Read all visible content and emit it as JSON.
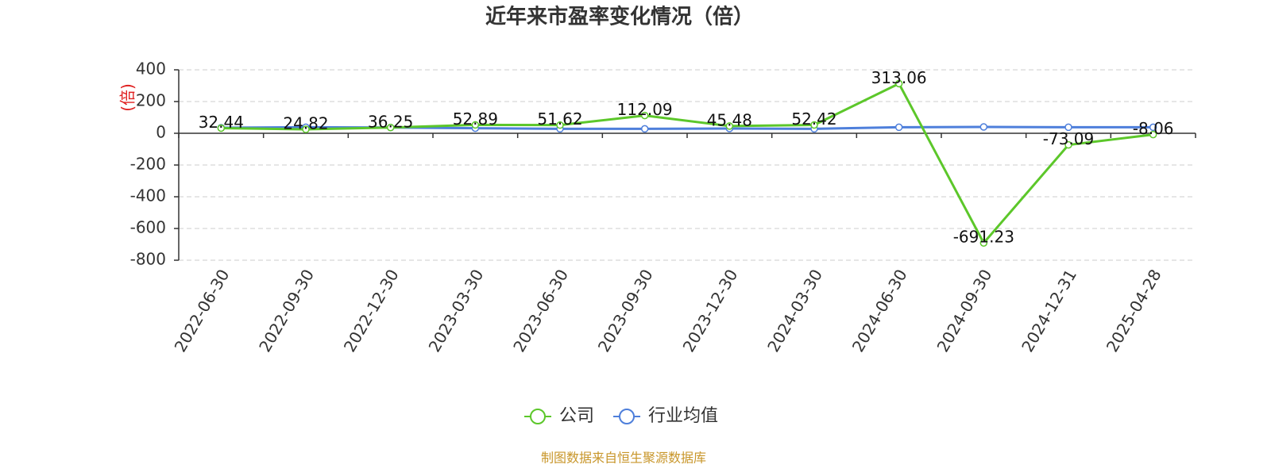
{
  "chart_data": {
    "type": "line",
    "title": "近年来市盈率变化情况（倍）",
    "y_label": "(倍)",
    "source": "制图数据来自恒生聚源数据库",
    "categories": [
      "2022-06-30",
      "2022-09-30",
      "2022-12-30",
      "2023-03-30",
      "2023-06-30",
      "2023-09-30",
      "2023-12-30",
      "2024-03-30",
      "2024-06-30",
      "2024-09-30",
      "2024-12-31",
      "2025-04-28"
    ],
    "series": [
      {
        "name": "公司",
        "color": "#5cc72a",
        "values": [
          32.44,
          24.82,
          36.25,
          52.89,
          51.62,
          112.09,
          45.48,
          52.42,
          313.06,
          -691.23,
          -73.09,
          -8.06
        ],
        "show_labels": true
      },
      {
        "name": "行业均值",
        "color": "#4e7fdb",
        "values": [
          35,
          38,
          36,
          32,
          28,
          28,
          30,
          28,
          38,
          40,
          38,
          38
        ],
        "show_labels": false
      }
    ],
    "ylim": [
      -800,
      400
    ],
    "yticks": [
      -800,
      -600,
      -400,
      -200,
      0,
      200,
      400
    ],
    "grid": true,
    "legend": "bottom"
  }
}
